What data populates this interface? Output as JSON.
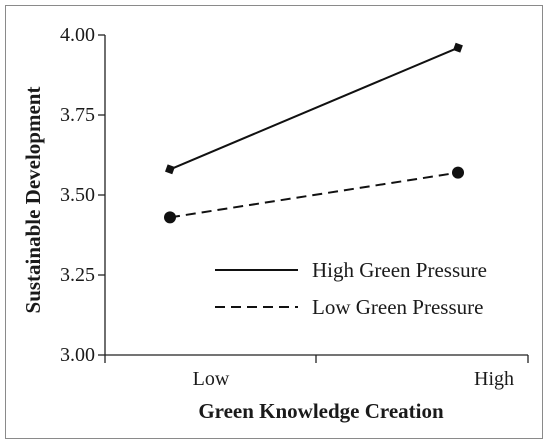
{
  "chart_data": {
    "type": "line",
    "title": "",
    "xlabel": "Green Knowledge Creation",
    "ylabel": "Sustainable Development",
    "categories": [
      "Low",
      "High"
    ],
    "ylim": [
      3.0,
      4.0
    ],
    "yticks": [
      "3.00",
      "3.25",
      "3.50",
      "3.75",
      "4.00"
    ],
    "grid": false,
    "legend_position": "bottom-right",
    "series": [
      {
        "name": "High Green Pressure",
        "values": [
          3.58,
          3.96
        ],
        "line_style": "solid",
        "marker": "diamond",
        "color": "#111111"
      },
      {
        "name": "Low Green Pressure",
        "values": [
          3.43,
          3.57
        ],
        "line_style": "dashed",
        "marker": "circle",
        "color": "#111111"
      }
    ]
  }
}
